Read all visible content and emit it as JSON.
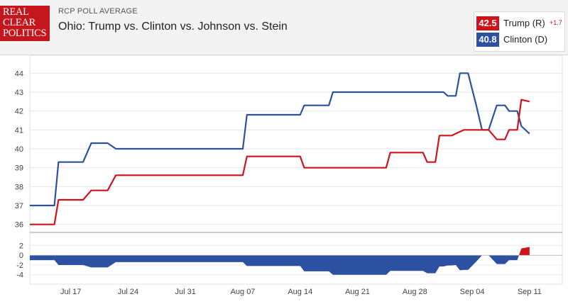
{
  "header": {
    "logo_lines": [
      "REAL",
      "CLEAR",
      "POLITICS"
    ],
    "subtitle": "RCP POLL AVERAGE",
    "title": "Ohio: Trump vs. Clinton vs. Johnson vs. Stein"
  },
  "legend": {
    "items": [
      {
        "value": "42.5",
        "label": "Trump (R)",
        "change": "+1.7",
        "color": "#d0121b"
      },
      {
        "value": "40.8",
        "label": "Clinton (D)",
        "change": "",
        "color": "#2c51a0"
      }
    ]
  },
  "chart_data": {
    "type": "line",
    "title": "Ohio: Trump vs. Clinton vs. Johnson vs. Stein",
    "x_range": [
      0,
      65
    ],
    "x_ticks": [
      {
        "x": 5,
        "label": "Jul 17"
      },
      {
        "x": 12,
        "label": "Jul 24"
      },
      {
        "x": 19,
        "label": "Jul 31"
      },
      {
        "x": 26,
        "label": "Aug 07"
      },
      {
        "x": 33,
        "label": "Aug 14"
      },
      {
        "x": 40,
        "label": "Aug 21"
      },
      {
        "x": 47,
        "label": "Aug 28"
      },
      {
        "x": 54,
        "label": "Sep 04"
      },
      {
        "x": 61,
        "label": "Sep 11"
      }
    ],
    "ylim": [
      35.5,
      44.5
    ],
    "y_ticks": [
      36,
      37,
      38,
      39,
      40,
      41,
      42,
      43,
      44
    ],
    "series": [
      {
        "name": "Clinton (D)",
        "color": "#2c51a0",
        "points": [
          [
            0,
            37
          ],
          [
            3,
            37
          ],
          [
            3.5,
            39.3
          ],
          [
            6.5,
            39.3
          ],
          [
            7.5,
            40.3
          ],
          [
            9.5,
            40.3
          ],
          [
            10.5,
            40
          ],
          [
            26,
            40
          ],
          [
            26.5,
            41.8
          ],
          [
            33,
            41.8
          ],
          [
            33.5,
            42.3
          ],
          [
            36.5,
            42.3
          ],
          [
            37,
            43
          ],
          [
            48,
            43
          ],
          [
            50.5,
            43
          ],
          [
            51,
            42.8
          ],
          [
            52,
            42.8
          ],
          [
            52.5,
            44
          ],
          [
            53.5,
            44
          ],
          [
            54.5,
            42.3
          ],
          [
            55.2,
            41
          ],
          [
            56,
            41
          ],
          [
            57,
            42.3
          ],
          [
            58,
            42.3
          ],
          [
            58.5,
            42
          ],
          [
            59.5,
            42
          ],
          [
            60,
            41.2
          ],
          [
            61,
            40.8
          ]
        ]
      },
      {
        "name": "Trump (R)",
        "color": "#d0121b",
        "points": [
          [
            0,
            36
          ],
          [
            3,
            36
          ],
          [
            3.5,
            37.3
          ],
          [
            6.5,
            37.3
          ],
          [
            7.5,
            37.8
          ],
          [
            9.5,
            37.8
          ],
          [
            10.5,
            38.6
          ],
          [
            26,
            38.6
          ],
          [
            26.5,
            39.6
          ],
          [
            33,
            39.6
          ],
          [
            33.5,
            39
          ],
          [
            43.5,
            39
          ],
          [
            44,
            39.8
          ],
          [
            48,
            39.8
          ],
          [
            48.5,
            39.3
          ],
          [
            49.5,
            39.3
          ],
          [
            50,
            40.7
          ],
          [
            51.5,
            40.7
          ],
          [
            53,
            41
          ],
          [
            56,
            41
          ],
          [
            57,
            40.5
          ],
          [
            58,
            40.5
          ],
          [
            58.5,
            41
          ],
          [
            59.5,
            41
          ],
          [
            60,
            42.6
          ],
          [
            61,
            42.5
          ]
        ]
      }
    ],
    "spread": {
      "ylim": [
        -5.5,
        2.8
      ],
      "y_ticks": [
        2,
        0,
        -2,
        -4
      ],
      "positive_color": "#d0121b",
      "negative_color": "#2c51a0"
    }
  }
}
